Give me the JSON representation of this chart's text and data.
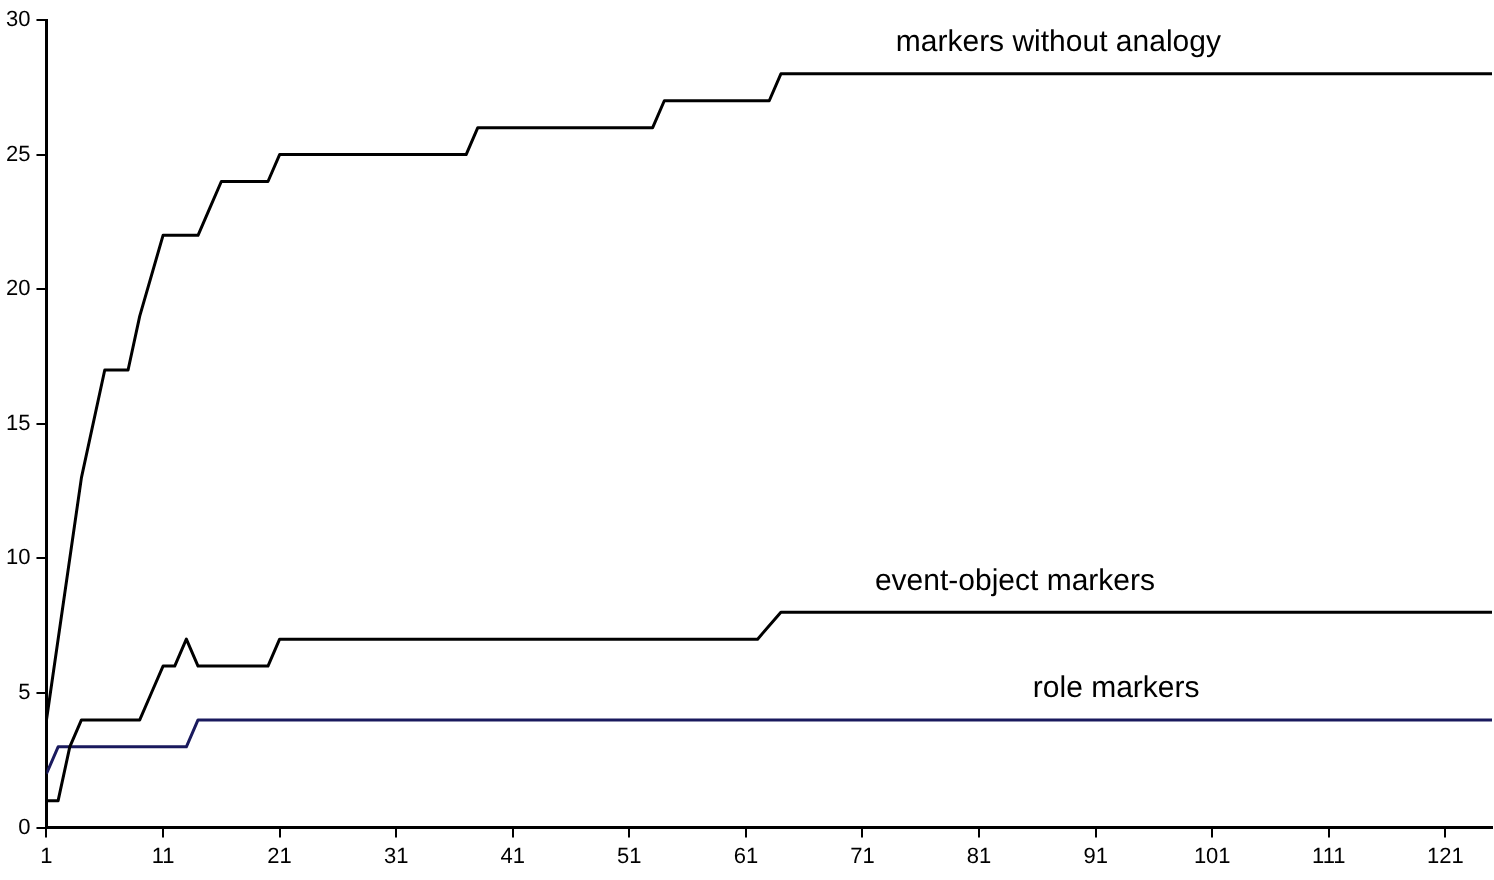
{
  "chart_data": {
    "type": "line",
    "xlim": [
      1,
      125
    ],
    "xticks": [
      1,
      11,
      21,
      31,
      41,
      51,
      61,
      71,
      81,
      91,
      101,
      111,
      121
    ],
    "ylim": [
      0,
      30
    ],
    "yticks": [
      0,
      5,
      10,
      15,
      20,
      25,
      30
    ],
    "legend": false,
    "marker": "none",
    "line_style": "solid",
    "series": [
      {
        "name": "markers without analogy",
        "color": "#000000",
        "x": [
          1,
          4,
          6,
          8,
          9,
          11,
          14,
          15,
          16,
          20,
          21,
          37,
          38,
          53,
          54,
          63,
          64,
          125
        ],
        "values": [
          4,
          13,
          17,
          17,
          19,
          22,
          22,
          23,
          24,
          24,
          25,
          25,
          26,
          26,
          27,
          27,
          28,
          28
        ]
      },
      {
        "name": "event-object markers",
        "color": "#000000",
        "x": [
          1,
          2,
          3,
          4,
          9,
          10,
          11,
          12,
          13,
          14,
          20,
          21,
          62,
          64,
          125
        ],
        "values": [
          1,
          1,
          3,
          4,
          4,
          5,
          6,
          6,
          7,
          6,
          6,
          7,
          7,
          8,
          8
        ]
      },
      {
        "name": "role markers",
        "color": "#1a1a5e",
        "x": [
          1,
          2,
          13,
          14,
          125
        ],
        "values": [
          2,
          3,
          3,
          4,
          4
        ]
      }
    ]
  }
}
